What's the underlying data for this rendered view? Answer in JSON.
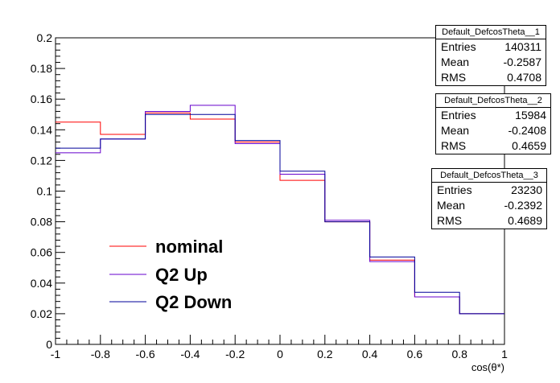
{
  "chart_data": {
    "type": "line",
    "xlabel": "cos(θ*)",
    "ylabel": "",
    "xlim": [
      -1,
      1
    ],
    "ylim": [
      0,
      0.2
    ],
    "bin_edges": [
      -1,
      -0.8,
      -0.6,
      -0.4,
      -0.2,
      0,
      0.2,
      0.4,
      0.6,
      0.8,
      1
    ],
    "x_ticks": [
      "-1",
      "-0.8",
      "-0.6",
      "-0.4",
      "-0.2",
      "0",
      "0.2",
      "0.4",
      "0.6",
      "0.8",
      "1"
    ],
    "y_ticks": [
      "0",
      "0.02",
      "0.04",
      "0.06",
      "0.08",
      "0.1",
      "0.12",
      "0.14",
      "0.16",
      "0.18",
      "0.2"
    ],
    "grid": false,
    "legend_position": "bottom-left",
    "series": [
      {
        "name": "nominal",
        "color": "#ff0000",
        "values": [
          0.145,
          0.137,
          0.151,
          0.147,
          0.132,
          0.107,
          0.08,
          0.055,
          0.031,
          0.02
        ]
      },
      {
        "name": "Q2 Up",
        "color": "#6600cc",
        "values": [
          0.125,
          0.134,
          0.152,
          0.156,
          0.131,
          0.111,
          0.081,
          0.054,
          0.031,
          0.02
        ]
      },
      {
        "name": "Q2 Down",
        "color": "#000099",
        "values": [
          0.128,
          0.134,
          0.15,
          0.15,
          0.133,
          0.113,
          0.08,
          0.057,
          0.034,
          0.02
        ]
      }
    ],
    "stat_boxes": [
      {
        "title": "Default_DefcosTheta__1",
        "entries_label": "Entries",
        "entries": "140311",
        "mean_label": "Mean",
        "mean": "-0.2587",
        "rms_label": "RMS",
        "rms": "0.4708"
      },
      {
        "title": "Default_DefcosTheta__2",
        "entries_label": "Entries",
        "entries": "15984",
        "mean_label": "Mean",
        "mean": "-0.2408",
        "rms_label": "RMS",
        "rms": "0.4659"
      },
      {
        "title": "Default_DefcosTheta__3",
        "entries_label": "Entries",
        "entries": "23230",
        "mean_label": "Mean",
        "mean": "-0.2392",
        "rms_label": "RMS",
        "rms": "0.4689"
      }
    ]
  }
}
